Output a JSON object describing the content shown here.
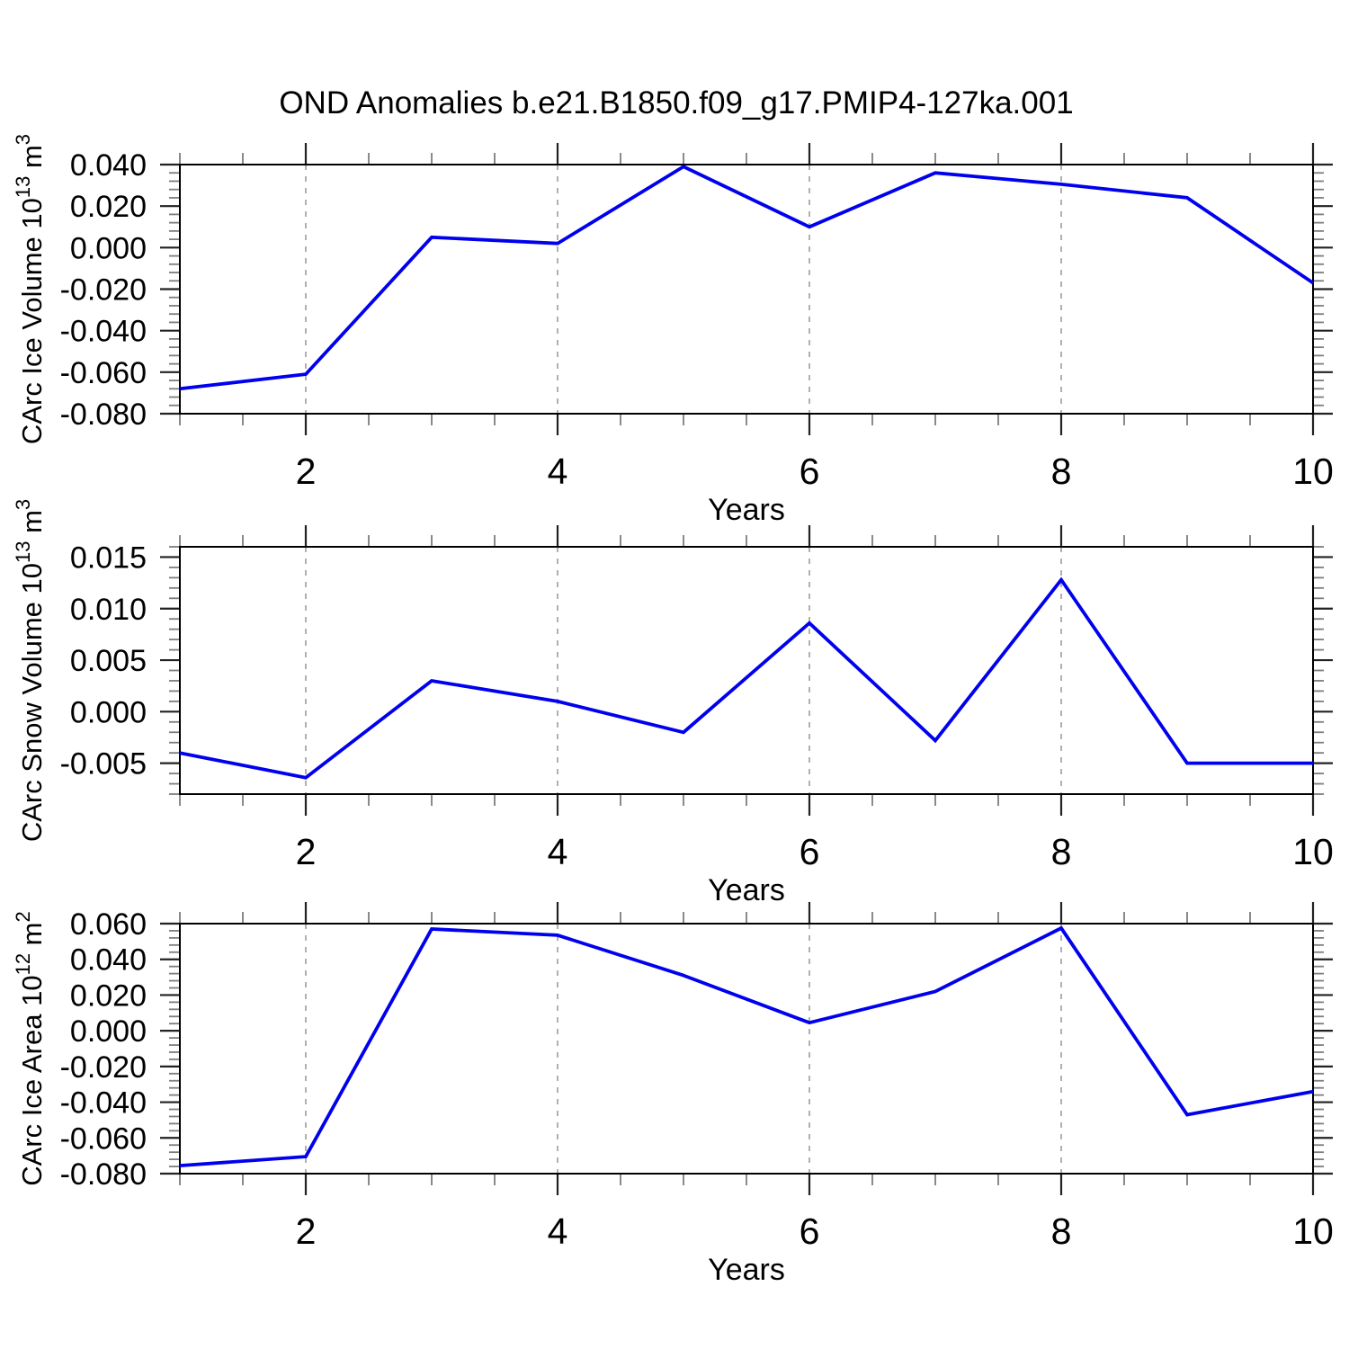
{
  "figure": {
    "title": "OND Anomalies b.e21.B1850.f09_g17.PMIP4-127ka.001",
    "background_color": "#ffffff",
    "axis_color": "#000000",
    "gridline_color": "#a8a8a8",
    "line_color": "#0000ee"
  },
  "chart_data": [
    {
      "type": "line",
      "id": "carc-ice-volume",
      "ylabel": "CArc Ice Volume 10^13 m^3",
      "ylabel_segments": [
        {
          "text": "CArc Ice Volume 10",
          "sup": false
        },
        {
          "text": "13",
          "sup": true
        },
        {
          "text": " m",
          "sup": false
        },
        {
          "text": "3",
          "sup": true
        }
      ],
      "xlabel": "Years",
      "x": [
        1,
        2,
        3,
        4,
        5,
        6,
        7,
        8,
        9,
        10
      ],
      "y": [
        -0.068,
        -0.061,
        0.005,
        0.002,
        0.039,
        0.01,
        0.036,
        0.0305,
        0.024,
        -0.017
      ],
      "xlim": [
        1,
        10
      ],
      "ylim": [
        -0.08,
        0.04
      ],
      "yticks": [
        {
          "label": "0.040",
          "value": 0.04
        },
        {
          "label": "0.020",
          "value": 0.02
        },
        {
          "label": "0.000",
          "value": 0.0
        },
        {
          "label": "-0.020",
          "value": -0.02
        },
        {
          "label": "-0.040",
          "value": -0.04
        },
        {
          "label": "-0.060",
          "value": -0.06
        },
        {
          "label": "-0.080",
          "value": -0.08
        }
      ],
      "xticks": [
        {
          "label": "2",
          "value": 2
        },
        {
          "label": "4",
          "value": 4
        },
        {
          "label": "6",
          "value": 6
        },
        {
          "label": "8",
          "value": 8
        },
        {
          "label": "10",
          "value": 10
        }
      ],
      "y_minor_step": 0.004,
      "x_minor_step": 0.5,
      "gridlines_x": [
        2,
        4,
        6,
        8
      ],
      "grid_style": "dashed",
      "legend": "none",
      "line_color": "#0000ee"
    },
    {
      "type": "line",
      "id": "carc-snow-volume",
      "ylabel": "CArc Snow Volume 10^13 m^3",
      "ylabel_segments": [
        {
          "text": "CArc Snow Volume 10",
          "sup": false
        },
        {
          "text": "13",
          "sup": true
        },
        {
          "text": " m",
          "sup": false
        },
        {
          "text": "3",
          "sup": true
        }
      ],
      "xlabel": "Years",
      "x": [
        1,
        2,
        3,
        4,
        5,
        6,
        7,
        8,
        9,
        10
      ],
      "y": [
        -0.004,
        -0.0064,
        0.003,
        0.001,
        -0.002,
        0.0086,
        -0.0028,
        0.0128,
        -0.005,
        -0.005
      ],
      "xlim": [
        1,
        10
      ],
      "ylim": [
        -0.008,
        0.016
      ],
      "yticks": [
        {
          "label": "0.015",
          "value": 0.015
        },
        {
          "label": "0.010",
          "value": 0.01
        },
        {
          "label": "0.005",
          "value": 0.005
        },
        {
          "label": "0.000",
          "value": 0.0
        },
        {
          "label": "-0.005",
          "value": -0.005
        }
      ],
      "xticks": [
        {
          "label": "2",
          "value": 2
        },
        {
          "label": "4",
          "value": 4
        },
        {
          "label": "6",
          "value": 6
        },
        {
          "label": "8",
          "value": 8
        },
        {
          "label": "10",
          "value": 10
        }
      ],
      "y_minor_step": 0.001,
      "x_minor_step": 0.5,
      "gridlines_x": [
        2,
        4,
        6,
        8
      ],
      "grid_style": "dashed",
      "legend": "none",
      "line_color": "#0000ee"
    },
    {
      "type": "line",
      "id": "carc-ice-area",
      "ylabel": "CArc Ice Area 10^12 m^2",
      "ylabel_segments": [
        {
          "text": "CArc Ice Area 10",
          "sup": false
        },
        {
          "text": "12",
          "sup": true
        },
        {
          "text": " m",
          "sup": false
        },
        {
          "text": "2",
          "sup": true
        }
      ],
      "xlabel": "Years",
      "x": [
        1,
        2,
        3,
        4,
        5,
        6,
        7,
        8,
        9,
        10
      ],
      "y": [
        -0.0755,
        -0.0705,
        0.057,
        0.0535,
        0.031,
        0.0045,
        0.022,
        0.0575,
        -0.047,
        -0.034
      ],
      "xlim": [
        1,
        10
      ],
      "ylim": [
        -0.08,
        0.06
      ],
      "yticks": [
        {
          "label": "0.060",
          "value": 0.06
        },
        {
          "label": "0.040",
          "value": 0.04
        },
        {
          "label": "0.020",
          "value": 0.02
        },
        {
          "label": "0.000",
          "value": 0.0
        },
        {
          "label": "-0.020",
          "value": -0.02
        },
        {
          "label": "-0.040",
          "value": -0.04
        },
        {
          "label": "-0.060",
          "value": -0.06
        },
        {
          "label": "-0.080",
          "value": -0.08
        }
      ],
      "xticks": [
        {
          "label": "2",
          "value": 2
        },
        {
          "label": "4",
          "value": 4
        },
        {
          "label": "6",
          "value": 6
        },
        {
          "label": "8",
          "value": 8
        },
        {
          "label": "10",
          "value": 10
        }
      ],
      "y_minor_step": 0.004,
      "x_minor_step": 0.5,
      "gridlines_x": [
        2,
        4,
        6,
        8
      ],
      "grid_style": "dashed",
      "legend": "none",
      "line_color": "#0000ee"
    }
  ]
}
